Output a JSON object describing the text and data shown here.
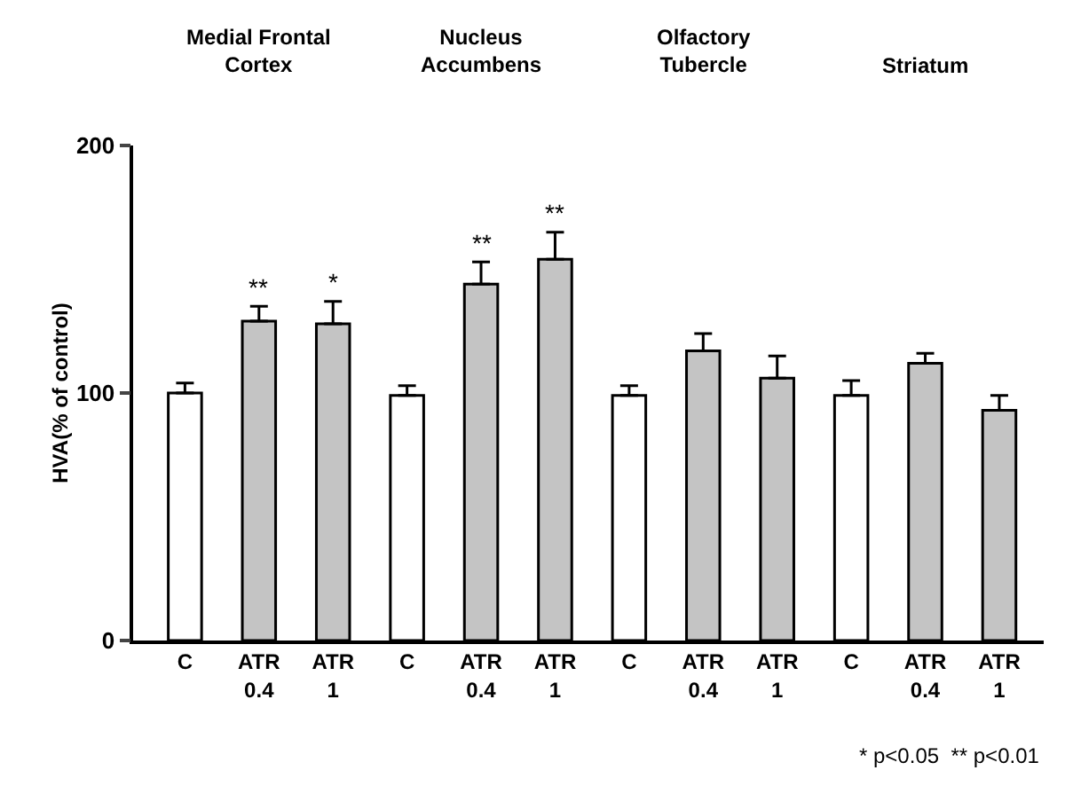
{
  "chart_data": {
    "type": "bar",
    "ylabel": "HVA(% of control)",
    "categories": [
      "C",
      "ATR\n0.4",
      "ATR\n1",
      "C",
      "ATR\n0.4",
      "ATR\n1",
      "C",
      "ATR\n0.4",
      "ATR\n1",
      "C",
      "ATR\n0.4",
      "ATR\n1"
    ],
    "values": [
      100,
      129,
      128,
      99,
      144,
      154,
      99,
      117,
      106,
      99,
      112,
      93
    ],
    "colors": [
      "#ffffff",
      "#c4c4c4",
      "#c4c4c4",
      "#ffffff",
      "#c4c4c4",
      "#c4c4c4",
      "#ffffff",
      "#c4c4c4",
      "#c4c4c4",
      "#ffffff",
      "#c4c4c4",
      "#c4c4c4"
    ],
    "errors": [
      [
        100,
        104
      ],
      [
        129,
        135
      ],
      [
        128,
        137
      ],
      [
        99,
        103
      ],
      [
        144,
        153
      ],
      [
        154,
        165
      ],
      [
        99,
        103
      ],
      [
        117,
        124
      ],
      [
        106,
        115
      ],
      [
        99,
        105
      ],
      [
        112,
        116
      ],
      [
        93,
        99
      ]
    ],
    "value_labels": [
      null,
      "**",
      "*",
      null,
      "**",
      "**",
      null,
      null,
      null,
      null,
      null,
      null
    ],
    "ylim": [
      0,
      200
    ],
    "yticks": [
      0,
      100,
      200
    ],
    "grid": false,
    "legend": false,
    "annotations": [
      "Medial Frontal\nCortex",
      "Nucleus\nAccumbens",
      "Olfactory\nTubercle",
      "Striatum",
      "* p<0.05  ** p<0.01"
    ]
  }
}
